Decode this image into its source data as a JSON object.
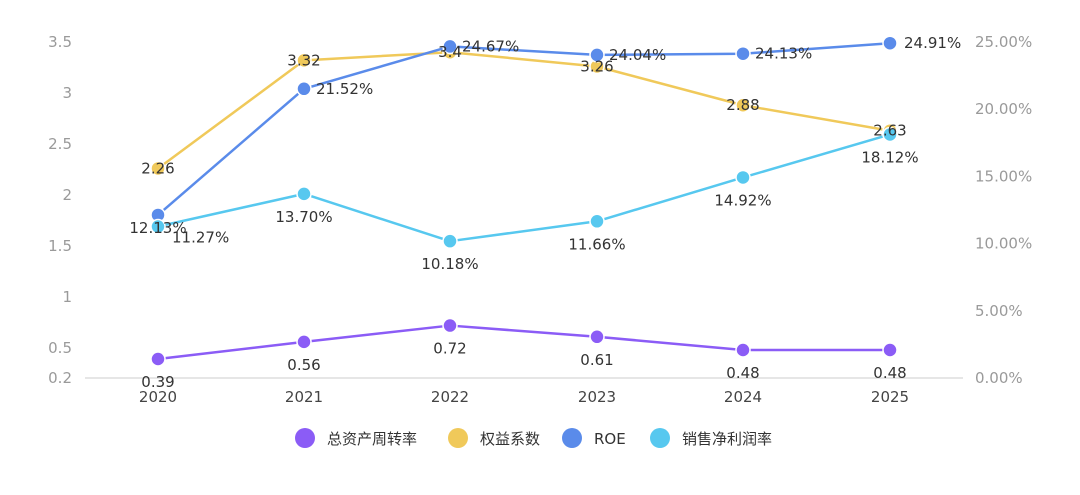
{
  "chart_data": {
    "type": "line",
    "categories": [
      "2020",
      "2021",
      "2022",
      "2023",
      "2024",
      "2025"
    ],
    "left_axis": {
      "ticks": [
        "0.2",
        "0.5",
        "1",
        "1.5",
        "2",
        "2.5",
        "3",
        "3.5"
      ]
    },
    "right_axis": {
      "ticks": [
        "0.00%",
        "5.00%",
        "10.00%",
        "15.00%",
        "20.00%",
        "25.00%"
      ]
    },
    "series": [
      {
        "name": "总资产周转率",
        "axis": "left",
        "color": "#8b5cf6",
        "values": [
          0.39,
          0.56,
          0.72,
          0.61,
          0.48,
          0.48
        ],
        "labels": [
          "0.39",
          "0.56",
          "0.72",
          "0.61",
          "0.48",
          "0.48"
        ]
      },
      {
        "name": "权益系数",
        "axis": "left",
        "color": "#f0c95a",
        "values": [
          2.26,
          3.32,
          3.4,
          3.26,
          2.88,
          2.63
        ],
        "labels": [
          "2.26",
          "3.32",
          "3.4",
          "3.26",
          "2.88",
          "2.63"
        ]
      },
      {
        "name": "ROE",
        "axis": "right",
        "color": "#5a8bea",
        "values": [
          12.13,
          21.52,
          24.67,
          24.04,
          24.13,
          24.91
        ],
        "labels": [
          "12.13%",
          "21.52%",
          "24.67%",
          "24.04%",
          "24.13%",
          "24.91%"
        ]
      },
      {
        "name": "销售净利润率",
        "axis": "right",
        "color": "#57c8ef",
        "values": [
          11.27,
          13.7,
          10.18,
          11.66,
          14.92,
          18.12
        ],
        "labels": [
          "11.27%",
          "13.70%",
          "10.18%",
          "11.66%",
          "14.92%",
          "18.12%"
        ]
      }
    ]
  }
}
